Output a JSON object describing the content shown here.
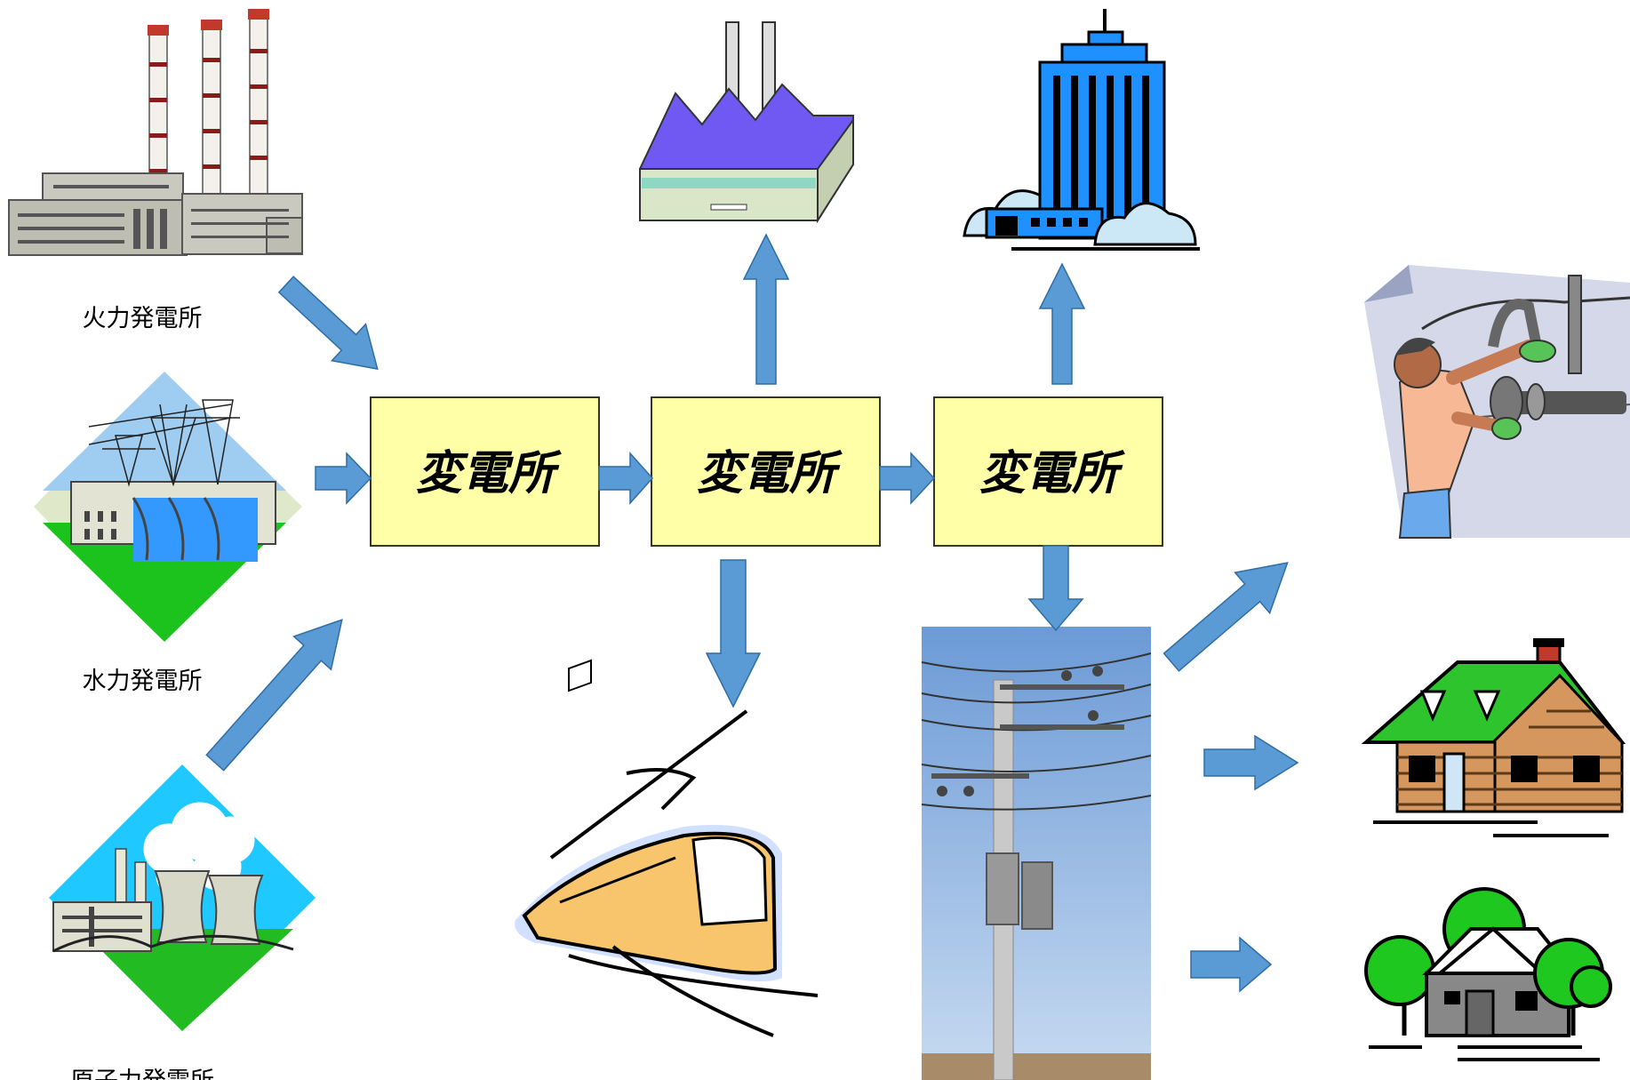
{
  "diagram": {
    "sources": [
      {
        "label": "火力発電所",
        "icon": "thermal-power-plant-icon"
      },
      {
        "label": "水力発電所",
        "icon": "hydro-power-plant-icon"
      },
      {
        "label": "原子力発電所",
        "icon": "nuclear-power-plant-icon"
      }
    ],
    "substations": [
      "変電所",
      "変電所",
      "変電所"
    ],
    "consumers": [
      {
        "icon": "factory-icon"
      },
      {
        "icon": "office-building-icon"
      },
      {
        "icon": "train-icon"
      },
      {
        "icon": "utility-pole-icon"
      },
      {
        "icon": "worker-shop-icon"
      },
      {
        "icon": "log-house-icon"
      },
      {
        "icon": "house-with-trees-icon"
      }
    ]
  },
  "colors": {
    "arrow": "#5b9bd5",
    "arrow_stroke": "#2e6da4",
    "substation_fill": "#ffffa8",
    "substation_stroke": "#333333"
  }
}
